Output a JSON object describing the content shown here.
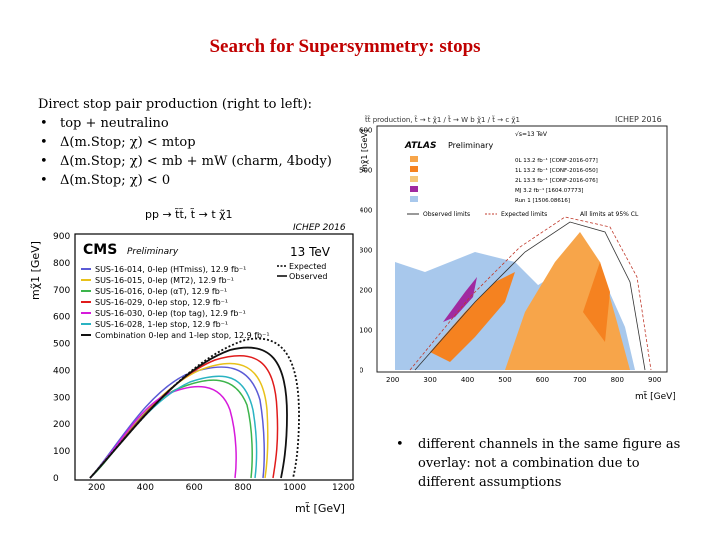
{
  "slide": {
    "title": "Search for Supersymmetry: stops",
    "intro_heading": "Direct stop pair production (right to left):",
    "intro_items": [
      "top + neutralino",
      "Δ(m.Stop; χ) < mtop",
      "Δ(m.Stop; χ) < mb + mW (charm, 4body)",
      "Δ(m.Stop; χ) < 0"
    ],
    "note": "different channels in the same figure as overlay: not a combination due to different assumptions"
  },
  "cms_plot": {
    "header": "pp → t̃t̃, t̃ → t χ̃1",
    "conference": "ICHEP 2016",
    "experiment": "CMS",
    "preliminary": "Preliminary",
    "energy": "13 TeV",
    "ylabel": "mχ̃1 [GeV]",
    "xlabel": "mt̃ [GeV]",
    "legend": [
      {
        "label": "SUS-16-014, 0-lep (HTmiss), 12.9 fb⁻¹",
        "color": "#5b5bd6"
      },
      {
        "label": "SUS-16-015, 0-lep (MT2), 12.9 fb⁻¹",
        "color": "#e8c11a"
      },
      {
        "label": "SUS-16-016, 0-lep (αT), 12.9 fb⁻¹",
        "color": "#3cb44b"
      },
      {
        "label": "SUS-16-029, 0-lep stop, 12.9 fb⁻¹",
        "color": "#e01b1b"
      },
      {
        "label": "SUS-16-030, 0-lep (top tag), 12.9 fb⁻¹",
        "color": "#d61adb"
      },
      {
        "label": "SUS-16-028, 1-lep stop, 12.9 fb⁻¹",
        "color": "#2ab3c2"
      },
      {
        "label": "Combination 0-lep and 1-lep stop, 12.9 fb⁻¹",
        "color": "#111111"
      }
    ],
    "expected_label": "Expected",
    "observed_label": "Observed",
    "x_ticks": [
      "200",
      "400",
      "600",
      "800",
      "1000",
      "1200"
    ],
    "y_ticks": [
      "0",
      "100",
      "200",
      "300",
      "400",
      "500",
      "600",
      "700",
      "800",
      "900"
    ]
  },
  "atlas_plot": {
    "header": "t̃t̃ production, t̃ → t χ̃1 / t̃ → W b χ̃1 / t̃ → c χ̃1",
    "conference": "ICHEP 2016",
    "experiment": "ATLAS",
    "preliminary": "Preliminary",
    "energy": "√s=13 TeV",
    "ylabel": "mχ̃1 [GeV]",
    "xlabel": "mt̃ [GeV]",
    "legend": [
      {
        "label": "0L 13.2 fb⁻¹ [CONF-2016-077]",
        "color": "#f7a54a"
      },
      {
        "label": "1L 13.2 fb⁻¹ [CONF-2016-050]",
        "color": "#f58220"
      },
      {
        "label": "2L 13.3 fb⁻¹ [CONF-2016-076]",
        "color": "#f4c77a"
      },
      {
        "label": "MJ 3.2 fb⁻¹ [1604.07773]",
        "color": "#a02aa0"
      },
      {
        "label": "Run 1 [1506.08616]",
        "color": "#a8c8ec"
      }
    ],
    "observed_label": "Observed limits",
    "expected_label": "Expected limits",
    "cl_label": "All limits at 95% CL",
    "x_ticks": [
      "200",
      "300",
      "400",
      "500",
      "600",
      "700",
      "800",
      "900"
    ],
    "y_ticks": [
      "0",
      "100",
      "200",
      "300",
      "400",
      "500",
      "600"
    ]
  }
}
